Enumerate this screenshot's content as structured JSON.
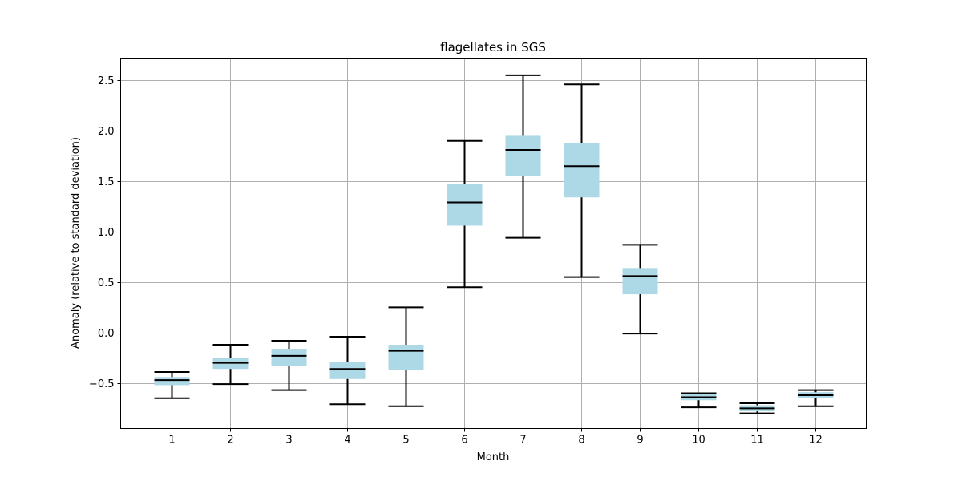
{
  "chart_data": {
    "type": "box",
    "title": "flagellates in SGS",
    "xlabel": "Month",
    "ylabel": "Anomaly (relative to standard deviation)",
    "categories": [
      "1",
      "2",
      "3",
      "4",
      "5",
      "6",
      "7",
      "8",
      "9",
      "10",
      "11",
      "12"
    ],
    "yticks": [
      "−0.5",
      "0.0",
      "0.5",
      "1.0",
      "1.5",
      "2.0",
      "2.5"
    ],
    "ytick_values": [
      -0.5,
      0.0,
      0.5,
      1.0,
      1.5,
      2.0,
      2.5
    ],
    "ylim": [
      -0.95,
      2.72
    ],
    "grid": true,
    "box_color": "#add8e6",
    "line_color": "#000000",
    "boxes": [
      {
        "month": "1",
        "whislo": -0.65,
        "q1": -0.52,
        "median": -0.47,
        "q3": -0.44,
        "whishi": -0.39
      },
      {
        "month": "2",
        "whislo": -0.51,
        "q1": -0.36,
        "median": -0.3,
        "q3": -0.25,
        "whishi": -0.12
      },
      {
        "month": "3",
        "whislo": -0.57,
        "q1": -0.33,
        "median": -0.23,
        "q3": -0.16,
        "whishi": -0.08
      },
      {
        "month": "4",
        "whislo": -0.71,
        "q1": -0.46,
        "median": -0.36,
        "q3": -0.29,
        "whishi": -0.04
      },
      {
        "month": "5",
        "whislo": -0.73,
        "q1": -0.37,
        "median": -0.18,
        "q3": -0.12,
        "whishi": 0.25
      },
      {
        "month": "6",
        "whislo": 0.45,
        "q1": 1.06,
        "median": 1.29,
        "q3": 1.47,
        "whishi": 1.9
      },
      {
        "month": "7",
        "whislo": 0.94,
        "q1": 1.55,
        "median": 1.81,
        "q3": 1.95,
        "whishi": 2.55
      },
      {
        "month": "8",
        "whislo": 0.55,
        "q1": 1.34,
        "median": 1.65,
        "q3": 1.88,
        "whishi": 2.46
      },
      {
        "month": "9",
        "whislo": -0.01,
        "q1": 0.38,
        "median": 0.56,
        "q3": 0.64,
        "whishi": 0.87
      },
      {
        "month": "10",
        "whislo": -0.74,
        "q1": -0.67,
        "median": -0.64,
        "q3": -0.61,
        "whishi": -0.6
      },
      {
        "month": "11",
        "whislo": -0.8,
        "q1": -0.78,
        "median": -0.75,
        "q3": -0.72,
        "whishi": -0.7
      },
      {
        "month": "12",
        "whislo": -0.73,
        "q1": -0.65,
        "median": -0.62,
        "q3": -0.59,
        "whishi": -0.57
      }
    ]
  }
}
